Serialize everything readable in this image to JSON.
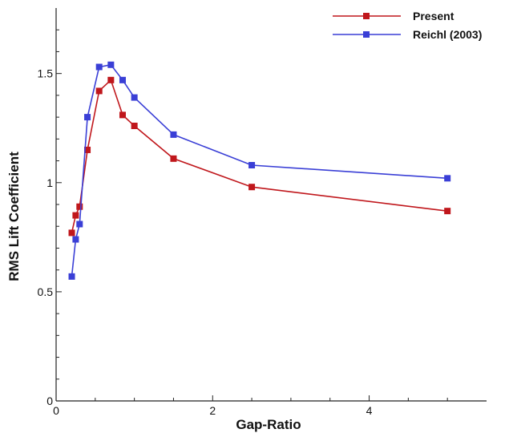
{
  "chart_data": {
    "type": "line",
    "xlabel": "Gap-Ratio",
    "ylabel": "RMS Lift Coefficient",
    "xlim": [
      0,
      5.5
    ],
    "ylim": [
      0,
      1.8
    ],
    "x_ticks": [
      0,
      2,
      4
    ],
    "x_tick_labels": [
      "0",
      "2",
      "4"
    ],
    "y_ticks": [
      0,
      0.5,
      1,
      1.5
    ],
    "y_tick_labels": [
      "0",
      "0.5",
      "1",
      "1.5"
    ],
    "grid": false,
    "legend_position": "top-right",
    "series": [
      {
        "name": "Present",
        "color": "#c0171c",
        "marker": "square",
        "x": [
          0.2,
          0.25,
          0.3,
          0.4,
          0.55,
          0.7,
          0.85,
          1.0,
          1.5,
          2.5,
          5.0
        ],
        "y": [
          0.77,
          0.85,
          0.89,
          1.15,
          1.42,
          1.47,
          1.31,
          1.26,
          1.11,
          0.98,
          0.87
        ]
      },
      {
        "name": "Reichl (2003)",
        "color": "#3a3fd6",
        "marker": "square",
        "x": [
          0.2,
          0.25,
          0.3,
          0.4,
          0.55,
          0.7,
          0.85,
          1.0,
          1.5,
          2.5,
          5.0
        ],
        "y": [
          0.57,
          0.74,
          0.81,
          1.3,
          1.53,
          1.54,
          1.47,
          1.39,
          1.22,
          1.08,
          1.02
        ]
      }
    ]
  }
}
